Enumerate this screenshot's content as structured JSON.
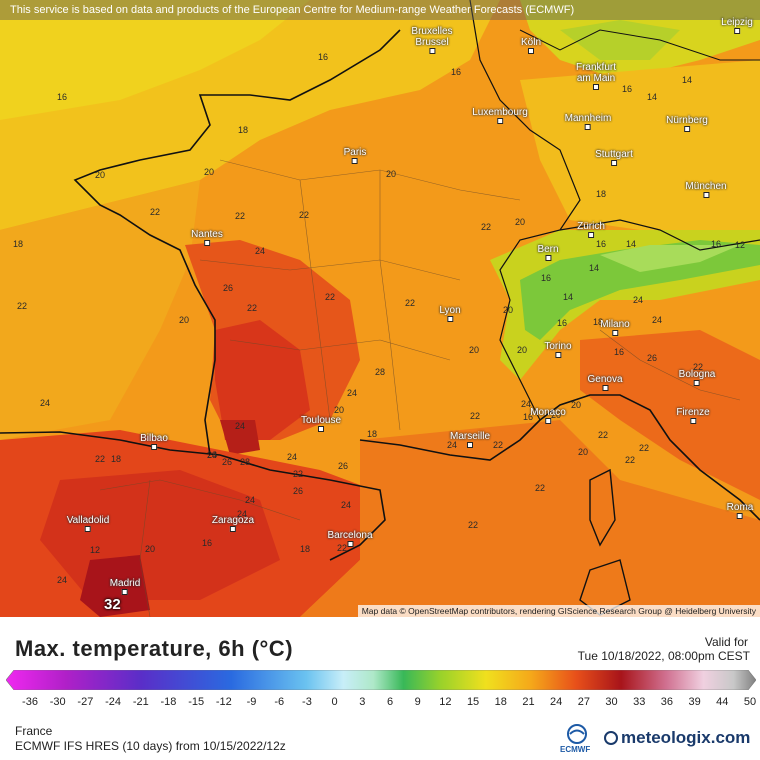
{
  "header": {
    "notice": "This service is based on data and products of the European Centre for Medium-range Weather Forecasts (ECMWF)"
  },
  "map": {
    "attribution": "Map data © OpenStreetMap contributors, rendering GIScience Research Group @ Heidelberg University",
    "max_value_label": "32",
    "cities": [
      {
        "name": "Bruxelles\nBrussel"
      },
      {
        "name": "Köln"
      },
      {
        "name": "Leipzig"
      },
      {
        "name": "Frankfurt\nam Main"
      },
      {
        "name": "Luxembourg"
      },
      {
        "name": "Mannheim"
      },
      {
        "name": "Nürnberg"
      },
      {
        "name": "Paris"
      },
      {
        "name": "Stuttgart"
      },
      {
        "name": "München"
      },
      {
        "name": "Nantes"
      },
      {
        "name": "Zürich"
      },
      {
        "name": "Bern"
      },
      {
        "name": "Lyon"
      },
      {
        "name": "Milano"
      },
      {
        "name": "Torino"
      },
      {
        "name": "Genova"
      },
      {
        "name": "Bologna"
      },
      {
        "name": "Toulouse"
      },
      {
        "name": "Monaco"
      },
      {
        "name": "Firenze"
      },
      {
        "name": "Marseille"
      },
      {
        "name": "Bilbao"
      },
      {
        "name": "Valladolid"
      },
      {
        "name": "Zaragoza"
      },
      {
        "name": "Barcelona"
      },
      {
        "name": "Roma"
      },
      {
        "name": "Madrid"
      }
    ],
    "isotherm_labels": [
      "16",
      "16",
      "18",
      "16",
      "14",
      "16",
      "14",
      "20",
      "20",
      "18",
      "22",
      "22",
      "18",
      "20",
      "22",
      "24",
      "22",
      "20",
      "16",
      "14",
      "16",
      "12",
      "14",
      "16",
      "14",
      "16",
      "20",
      "20",
      "24",
      "24",
      "26",
      "22",
      "20",
      "22",
      "22",
      "22",
      "20",
      "18",
      "16",
      "26",
      "22",
      "24",
      "28",
      "24",
      "20",
      "18",
      "22",
      "24",
      "22",
      "24",
      "20",
      "16",
      "20",
      "22",
      "22",
      "24",
      "26",
      "28",
      "24",
      "22",
      "24",
      "28",
      "26",
      "26",
      "24",
      "24",
      "24",
      "22",
      "18",
      "12",
      "16",
      "20",
      "18",
      "22",
      "24",
      "22",
      "22",
      "20",
      "22"
    ]
  },
  "legend": {
    "title": "Max. temperature, 6h (°C)",
    "valid_label": "Valid for",
    "valid_time": "Tue 10/18/2022, 08:00pm CEST",
    "ticks": [
      "-36",
      "-30",
      "-27",
      "-24",
      "-21",
      "-18",
      "-15",
      "-12",
      "-9",
      "-6",
      "-3",
      "0",
      "3",
      "6",
      "9",
      "12",
      "15",
      "18",
      "21",
      "24",
      "27",
      "30",
      "33",
      "36",
      "39",
      "44",
      "50"
    ],
    "region": "France",
    "model": "ECMWF IFS HRES (10 days) from 10/15/2022/12z",
    "ecmwf_logo": "ECMWF",
    "brand": "meteologix.com",
    "colors": {
      "cold": "#e020e0",
      "cool": "#3aa0e8",
      "mild": "#7ad84a",
      "warm": "#f5c518",
      "hot": "#e8401a",
      "extreme": "#8a0d0d"
    }
  }
}
